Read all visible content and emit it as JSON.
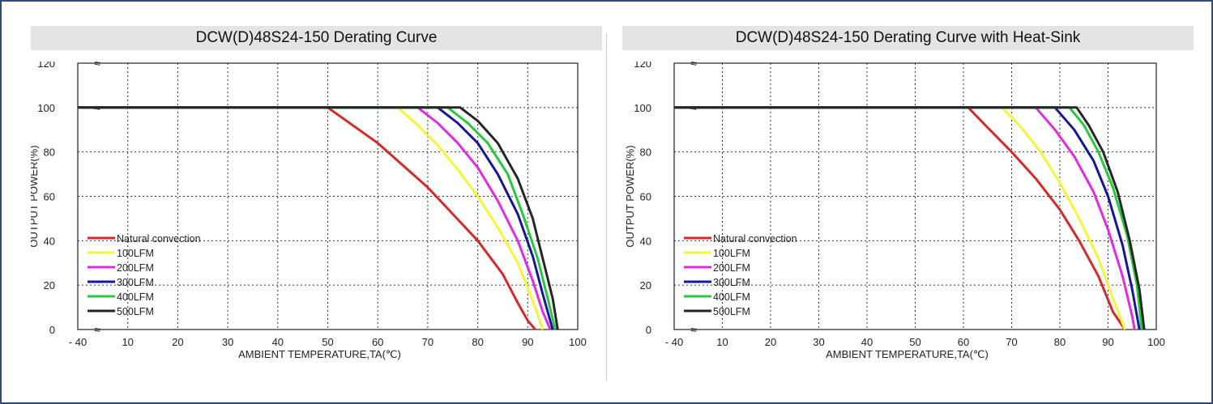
{
  "colors": {
    "frame": "#2a4e7c",
    "title_bg": "#e4e4e4",
    "natural": "#d42a2a",
    "lfm100": "#f5f53a",
    "lfm200": "#e02ce0",
    "lfm300": "#16169a",
    "lfm400": "#27c83e",
    "lfm500": "#262626"
  },
  "chart_data": [
    {
      "type": "line",
      "title": "DCW(D)48S24-150 Derating Curve",
      "xlabel": "AMBIENT TEMPERATURE,TA(℃)",
      "ylabel": "OUTPUT POWER(%)",
      "x_ticks": [
        "- 40",
        "10",
        "20",
        "30",
        "40",
        "50",
        "60",
        "70",
        "80",
        "90",
        "100"
      ],
      "x_tick_values": [
        0,
        10,
        20,
        30,
        40,
        50,
        60,
        70,
        80,
        90,
        100
      ],
      "y_ticks": [
        "0",
        "20",
        "40",
        "60",
        "80",
        "100",
        "120"
      ],
      "xlim": [
        0,
        100
      ],
      "ylim": [
        0,
        120
      ],
      "axis_break": "≈",
      "grid": true,
      "legend_position": "bottom-left",
      "series": [
        {
          "name": "Natural convection",
          "color_key": "natural",
          "points": [
            [
              0,
              100
            ],
            [
              50,
              100
            ],
            [
              55,
              92
            ],
            [
              60,
              84
            ],
            [
              65,
              74
            ],
            [
              70,
              64
            ],
            [
              75,
              52
            ],
            [
              80,
              40
            ],
            [
              85,
              25
            ],
            [
              88,
              12
            ],
            [
              90,
              4
            ],
            [
              91.5,
              0
            ]
          ]
        },
        {
          "name": "100LFM",
          "color_key": "lfm100",
          "points": [
            [
              0,
              100
            ],
            [
              64,
              100
            ],
            [
              68,
              92
            ],
            [
              72,
              83
            ],
            [
              76,
              72
            ],
            [
              80,
              60
            ],
            [
              84,
              46
            ],
            [
              88,
              30
            ],
            [
              91,
              13
            ],
            [
              93,
              0
            ]
          ]
        },
        {
          "name": "200LFM",
          "color_key": "lfm200",
          "points": [
            [
              0,
              100
            ],
            [
              68,
              100
            ],
            [
              72,
              93
            ],
            [
              76,
              84
            ],
            [
              80,
              73
            ],
            [
              84,
              58
            ],
            [
              88,
              40
            ],
            [
              91,
              22
            ],
            [
              93,
              8
            ],
            [
              94.5,
              0
            ]
          ]
        },
        {
          "name": "300LFM",
          "color_key": "lfm300",
          "points": [
            [
              0,
              100
            ],
            [
              72,
              100
            ],
            [
              76,
              93
            ],
            [
              80,
              84
            ],
            [
              84,
              70
            ],
            [
              88,
              52
            ],
            [
              91,
              33
            ],
            [
              93,
              16
            ],
            [
              95,
              0
            ]
          ]
        },
        {
          "name": "400LFM",
          "color_key": "lfm400",
          "points": [
            [
              0,
              100
            ],
            [
              74,
              100
            ],
            [
              78,
              93
            ],
            [
              82,
              84
            ],
            [
              86,
              70
            ],
            [
              89,
              52
            ],
            [
              92,
              32
            ],
            [
              94,
              14
            ],
            [
              95.5,
              0
            ]
          ]
        },
        {
          "name": "500LFM",
          "color_key": "lfm500",
          "points": [
            [
              0,
              100
            ],
            [
              76.5,
              100
            ],
            [
              80,
              94
            ],
            [
              84,
              84
            ],
            [
              88,
              68
            ],
            [
              91,
              50
            ],
            [
              93,
              32
            ],
            [
              95,
              14
            ],
            [
              96,
              0
            ]
          ]
        }
      ]
    },
    {
      "type": "line",
      "title": "DCW(D)48S24-150 Derating Curve with Heat-Sink",
      "xlabel": "AMBIENT TEMPERATURE,TA(℃)",
      "ylabel": "OUTPUT POWER(%)",
      "x_ticks": [
        "- 40",
        "10",
        "20",
        "30",
        "40",
        "50",
        "60",
        "70",
        "80",
        "90",
        "100"
      ],
      "x_tick_values": [
        0,
        10,
        20,
        30,
        40,
        50,
        60,
        70,
        80,
        90,
        100
      ],
      "y_ticks": [
        "0",
        "20",
        "40",
        "60",
        "80",
        "100",
        "120"
      ],
      "xlim": [
        0,
        100
      ],
      "ylim": [
        0,
        120
      ],
      "axis_break": "≈",
      "grid": true,
      "legend_position": "bottom-left",
      "series": [
        {
          "name": "Natural convection",
          "color_key": "natural",
          "points": [
            [
              0,
              100
            ],
            [
              61,
              100
            ],
            [
              65,
              91
            ],
            [
              70,
              80
            ],
            [
              75,
              68
            ],
            [
              80,
              54
            ],
            [
              84,
              40
            ],
            [
              88,
              24
            ],
            [
              91,
              8
            ],
            [
              93.5,
              0
            ]
          ]
        },
        {
          "name": "100LFM",
          "color_key": "lfm100",
          "points": [
            [
              0,
              100
            ],
            [
              68,
              100
            ],
            [
              72,
              91
            ],
            [
              76,
              80
            ],
            [
              80,
              66
            ],
            [
              84,
              50
            ],
            [
              88,
              32
            ],
            [
              91,
              14
            ],
            [
              93.5,
              0
            ]
          ]
        },
        {
          "name": "200LFM",
          "color_key": "lfm200",
          "points": [
            [
              0,
              100
            ],
            [
              75,
              100
            ],
            [
              79,
              90
            ],
            [
              83,
              78
            ],
            [
              87,
              62
            ],
            [
              90,
              45
            ],
            [
              93,
              24
            ],
            [
              95,
              6
            ],
            [
              95.5,
              0
            ]
          ]
        },
        {
          "name": "300LFM",
          "color_key": "lfm300",
          "points": [
            [
              0,
              100
            ],
            [
              79,
              100
            ],
            [
              83,
              90
            ],
            [
              87,
              76
            ],
            [
              90,
              60
            ],
            [
              93,
              38
            ],
            [
              95,
              18
            ],
            [
              96.5,
              0
            ]
          ]
        },
        {
          "name": "400LFM",
          "color_key": "lfm400",
          "points": [
            [
              0,
              100
            ],
            [
              82,
              100
            ],
            [
              85,
              92
            ],
            [
              88,
              80
            ],
            [
              91,
              64
            ],
            [
              94,
              42
            ],
            [
              96,
              20
            ],
            [
              97,
              0
            ]
          ]
        },
        {
          "name": "500LFM",
          "color_key": "lfm500",
          "points": [
            [
              0,
              100
            ],
            [
              83.5,
              100
            ],
            [
              86,
              92
            ],
            [
              89,
              80
            ],
            [
              92,
              62
            ],
            [
              94.5,
              40
            ],
            [
              96.5,
              18
            ],
            [
              97.5,
              0
            ]
          ]
        }
      ]
    }
  ]
}
